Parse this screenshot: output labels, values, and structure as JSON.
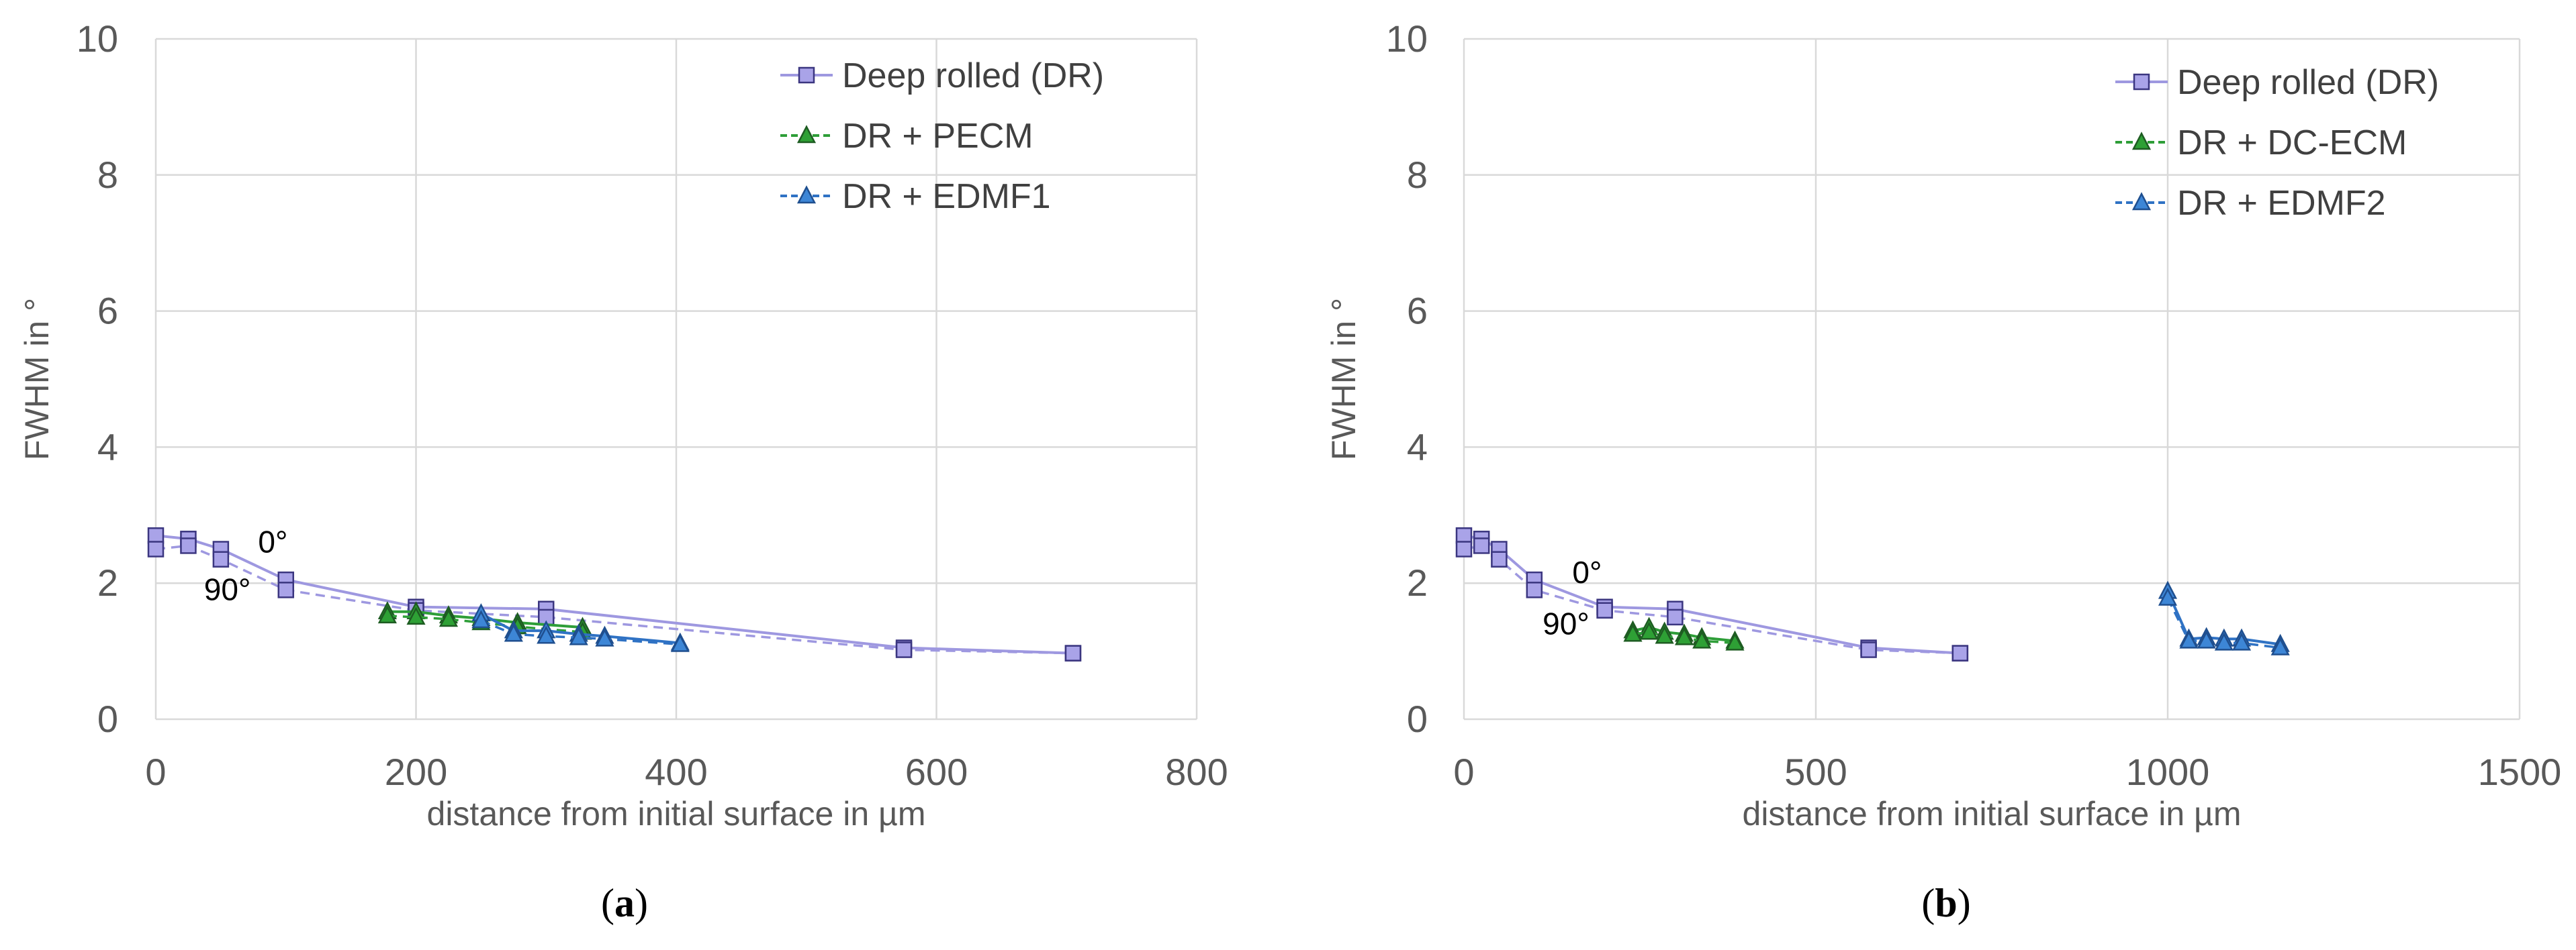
{
  "captions": [
    "(a)",
    "(b)"
  ],
  "caption_letters": [
    "a",
    "b"
  ],
  "chart_data": [
    {
      "type": "line",
      "xlabel": "distance from initial surface in µm",
      "ylabel": "FWHM in °",
      "xlim": [
        0,
        800
      ],
      "ylim": [
        0,
        10
      ],
      "xticks": [
        "0",
        "200",
        "400",
        "600",
        "800"
      ],
      "yticks": [
        "0",
        "2",
        "4",
        "6",
        "8",
        "10"
      ],
      "grid": true,
      "legend_position": "top-right",
      "annotations": [
        {
          "text": "0°",
          "x": 90,
          "y": 2.45
        },
        {
          "text": "90°",
          "x": 55,
          "y": 1.75
        }
      ],
      "series": [
        {
          "name": "Deep rolled (DR) 0°",
          "legend": "Deep rolled (DR)",
          "color": "#9e98e0",
          "marker": "square",
          "fill": "#9e98e0",
          "dash": false,
          "x": [
            0,
            25,
            50,
            100,
            200,
            300,
            575,
            705
          ],
          "y": [
            2.7,
            2.65,
            2.5,
            2.05,
            1.65,
            1.62,
            1.05,
            0.97
          ]
        },
        {
          "name": "Deep rolled (DR) 90°",
          "legend": "",
          "color": "#9e98e0",
          "marker": "square",
          "fill": "#9e98e0",
          "dash": true,
          "x": [
            0,
            25,
            50,
            100,
            200,
            300,
            575,
            705
          ],
          "y": [
            2.5,
            2.55,
            2.35,
            1.9,
            1.6,
            1.5,
            1.02,
            0.97
          ]
        },
        {
          "name": "DR + PECM 0°",
          "legend": "DR + PECM",
          "color": "#2e9e38",
          "marker": "triangle",
          "fill": "#2e9e38",
          "dash": false,
          "x": [
            178,
            200,
            225,
            250,
            278,
            328
          ],
          "y": [
            1.58,
            1.58,
            1.52,
            1.48,
            1.42,
            1.35
          ]
        },
        {
          "name": "DR + PECM 90°",
          "legend": "",
          "color": "#2e9e38",
          "marker": "triangle",
          "fill": "#2e9e38",
          "dash": true,
          "x": [
            178,
            200,
            225,
            250,
            278,
            328
          ],
          "y": [
            1.52,
            1.5,
            1.47,
            1.42,
            1.36,
            1.28
          ]
        },
        {
          "name": "DR + EDMF1 0°",
          "legend": "DR + EDMF1",
          "color": "#2f72c4",
          "marker": "triangle-open",
          "fill": "#2f72c4",
          "dash": false,
          "x": [
            250,
            275,
            300,
            325,
            345,
            403
          ],
          "y": [
            1.55,
            1.3,
            1.3,
            1.25,
            1.22,
            1.12
          ]
        },
        {
          "name": "DR + EDMF1 90°",
          "legend": "",
          "color": "#2f72c4",
          "marker": "triangle-open",
          "fill": "#2f72c4",
          "dash": true,
          "x": [
            250,
            275,
            300,
            325,
            345,
            403
          ],
          "y": [
            1.45,
            1.25,
            1.22,
            1.2,
            1.18,
            1.1
          ]
        }
      ]
    },
    {
      "type": "line",
      "xlabel": "distance from initial surface in µm",
      "ylabel": "FWHM in °",
      "xlim": [
        0,
        1500
      ],
      "ylim": [
        0,
        10
      ],
      "xticks": [
        "0",
        "500",
        "1000",
        "1500"
      ],
      "yticks": [
        "0",
        "2",
        "4",
        "6",
        "8",
        "10"
      ],
      "grid": true,
      "legend_position": "top-right",
      "annotations": [
        {
          "text": "0°",
          "x": 175,
          "y": 2.0
        },
        {
          "text": "90°",
          "x": 145,
          "y": 1.25
        }
      ],
      "series": [
        {
          "name": "Deep rolled (DR) 0°",
          "legend": "Deep rolled (DR)",
          "color": "#9e98e0",
          "marker": "square",
          "fill": "#9e98e0",
          "dash": false,
          "x": [
            0,
            25,
            50,
            100,
            200,
            300,
            575,
            705
          ],
          "y": [
            2.7,
            2.65,
            2.5,
            2.05,
            1.65,
            1.62,
            1.05,
            0.97
          ]
        },
        {
          "name": "Deep rolled (DR) 90°",
          "legend": "",
          "color": "#9e98e0",
          "marker": "square",
          "fill": "#9e98e0",
          "dash": true,
          "x": [
            0,
            25,
            50,
            100,
            200,
            300,
            575,
            705
          ],
          "y": [
            2.5,
            2.55,
            2.35,
            1.9,
            1.6,
            1.5,
            1.02,
            0.97
          ]
        },
        {
          "name": "DR + DC-ECM 0°",
          "legend": "DR + DC-ECM",
          "color": "#2e9e38",
          "marker": "triangle",
          "fill": "#2e9e38",
          "dash": false,
          "x": [
            240,
            263,
            285,
            313,
            338,
            385
          ],
          "y": [
            1.3,
            1.35,
            1.28,
            1.25,
            1.2,
            1.15
          ]
        },
        {
          "name": "DR + DC-ECM 90°",
          "legend": "",
          "color": "#2e9e38",
          "marker": "triangle",
          "fill": "#2e9e38",
          "dash": true,
          "x": [
            240,
            263,
            285,
            313,
            338,
            385
          ],
          "y": [
            1.25,
            1.28,
            1.22,
            1.2,
            1.15,
            1.12
          ]
        },
        {
          "name": "DR + EDMF2 0°",
          "legend": "DR + EDMF2",
          "color": "#2f72c4",
          "marker": "triangle-open",
          "fill": "#2f72c4",
          "dash": false,
          "x": [
            1000,
            1030,
            1055,
            1080,
            1105,
            1160
          ],
          "y": [
            1.88,
            1.18,
            1.2,
            1.18,
            1.18,
            1.1
          ]
        },
        {
          "name": "DR + EDMF2 90°",
          "legend": "",
          "color": "#2f72c4",
          "marker": "triangle-open",
          "fill": "#2f72c4",
          "dash": true,
          "x": [
            1000,
            1030,
            1055,
            1080,
            1105,
            1160
          ],
          "y": [
            1.78,
            1.15,
            1.15,
            1.12,
            1.12,
            1.05
          ]
        }
      ]
    }
  ]
}
